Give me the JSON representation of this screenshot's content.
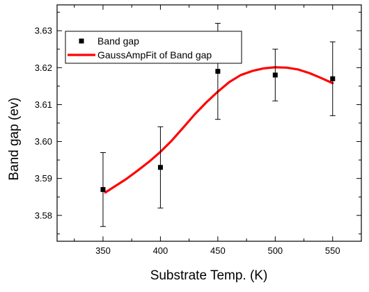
{
  "chart_data": {
    "type": "scatter",
    "xlabel": "Substrate Temp. (K)",
    "ylabel": "Band gap (ev)",
    "xlim": [
      310,
      575
    ],
    "ylim": [
      3.573,
      3.637
    ],
    "xticks": [
      350,
      400,
      450,
      500,
      550
    ],
    "yticks": [
      3.58,
      3.59,
      3.6,
      3.61,
      3.62,
      3.63
    ],
    "xtick_labels": [
      "350",
      "400",
      "450",
      "500",
      "550"
    ],
    "ytick_labels": [
      "3.58",
      "3.59",
      "3.60",
      "3.61",
      "3.62",
      "3.63"
    ],
    "legend_position": "top-left",
    "series": [
      {
        "name": "Band gap",
        "kind": "points-with-error-bars",
        "color": "#000000",
        "marker": "square",
        "x": [
          350,
          400,
          450,
          500,
          550
        ],
        "y": [
          3.587,
          3.593,
          3.619,
          3.618,
          3.617
        ],
        "err_low": [
          3.577,
          3.582,
          3.606,
          3.611,
          3.607
        ],
        "err_high": [
          3.597,
          3.604,
          3.632,
          3.625,
          3.627
        ]
      },
      {
        "name": "GaussAmpFit of Band gap",
        "kind": "line",
        "color": "#ff0000",
        "x": [
          352,
          360,
          370,
          380,
          390,
          400,
          410,
          420,
          430,
          440,
          450,
          460,
          470,
          480,
          490,
          500,
          510,
          520,
          530,
          540,
          550
        ],
        "y": [
          3.5862,
          3.5878,
          3.5898,
          3.5921,
          3.5945,
          3.5972,
          3.6003,
          3.6038,
          3.6074,
          3.6106,
          3.6135,
          3.6161,
          3.618,
          3.6191,
          3.6198,
          3.6201,
          3.62,
          3.6195,
          3.6185,
          3.6172,
          3.6158
        ]
      }
    ]
  }
}
